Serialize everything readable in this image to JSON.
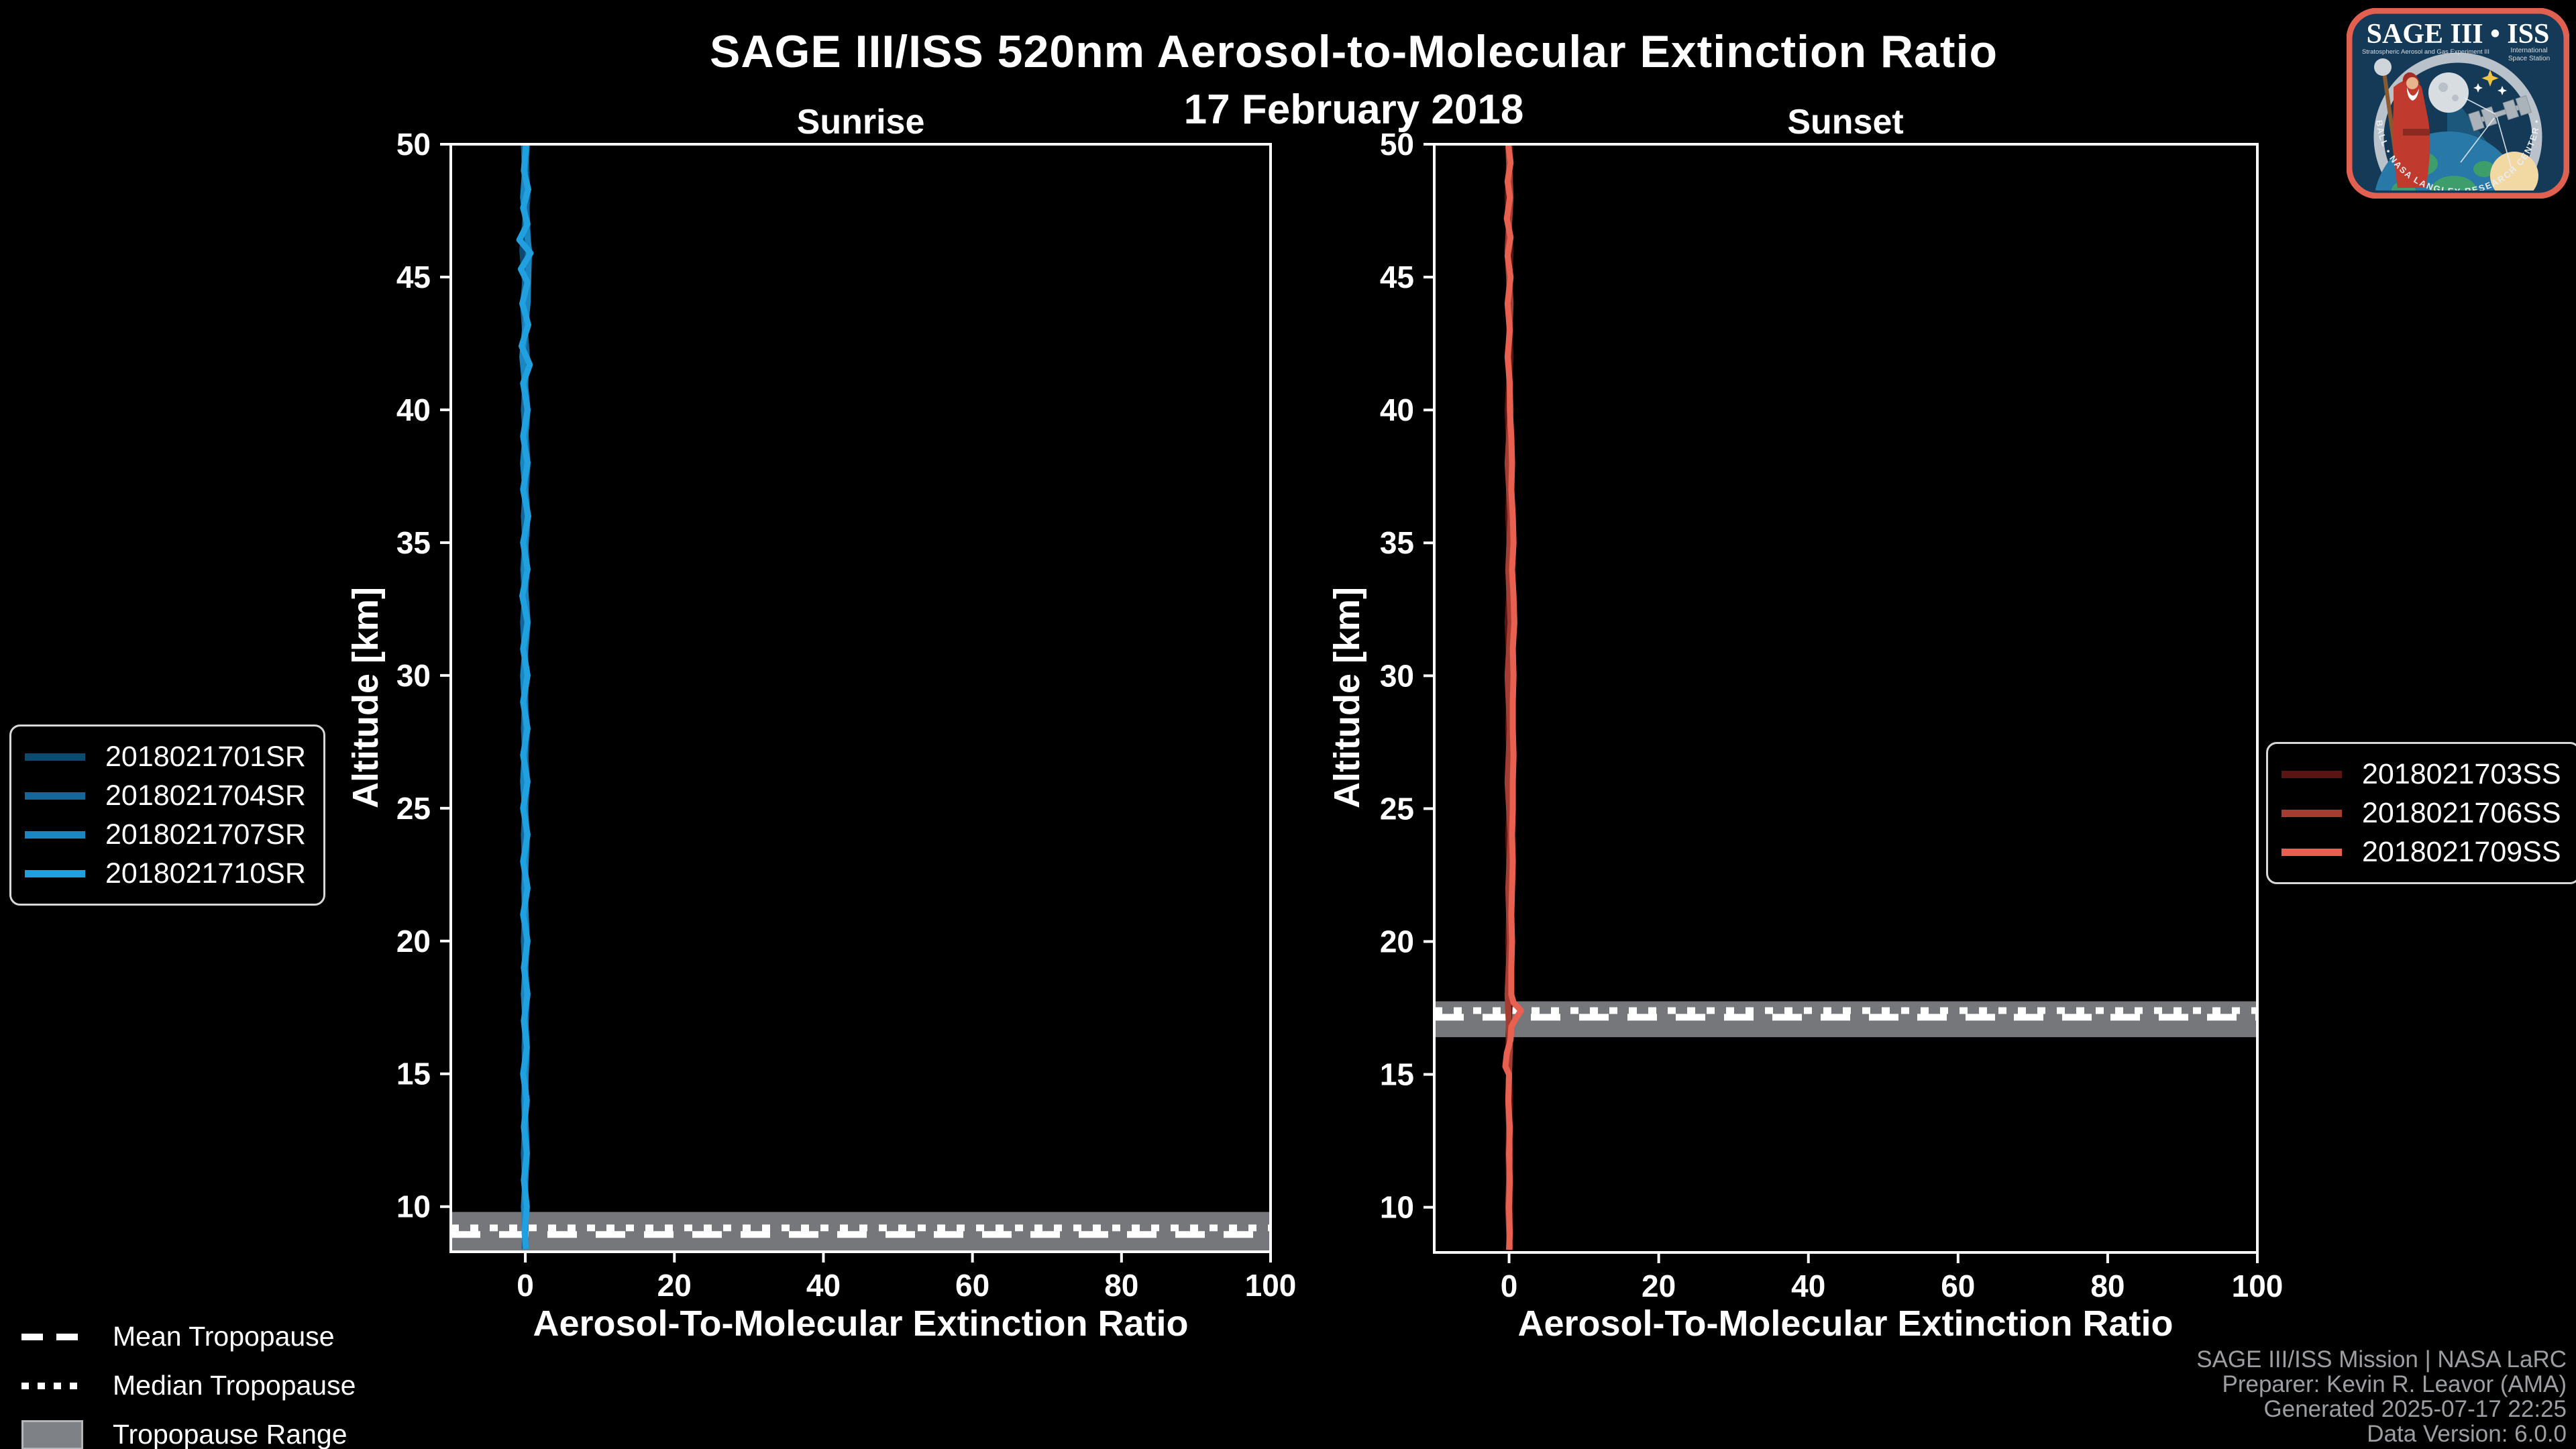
{
  "figure": {
    "title": "SAGE III/ISS 520nm Aerosol-to-Molecular Extinction Ratio",
    "subtitle": "17 February 2018",
    "background": "#000000",
    "text_color": "#ffffff",
    "axis_color": "#ffffff"
  },
  "credits": {
    "color": "#9c9ea1",
    "lines": [
      "SAGE III/ISS Mission | NASA LaRC",
      "Preparer: Kevin R. Leavor (AMA)",
      "Generated 2025-07-17 22:25",
      "Data Version: 6.0.0"
    ]
  },
  "tropopause_legend": {
    "items": [
      {
        "label": "Mean Tropopause",
        "style": "dashed"
      },
      {
        "label": "Median Tropopause",
        "style": "dotted"
      },
      {
        "label": "Tropopause Range",
        "style": "patch"
      }
    ]
  },
  "logo": {
    "title": "SAGE III • ISS",
    "sub_left": "Stratospheric Aerosol and Gas Experiment III",
    "sub_right_1": "International",
    "sub_right_2": "Space Station",
    "ring_text": "BALL • NASA LANGLEY RESEARCH CENTER • SS-I • ESA",
    "border_color": "#e2604f",
    "bg_color": "#143a57"
  },
  "chart_data": [
    {
      "type": "line",
      "title": "Sunrise",
      "xlabel": "Aerosol-To-Molecular Extinction Ratio",
      "ylabel": "Altitude [km]",
      "xlim": [
        -10,
        100
      ],
      "ylim": [
        8.3,
        50
      ],
      "xticks": [
        0,
        20,
        40,
        60,
        80,
        100
      ],
      "yticks": [
        10,
        15,
        20,
        25,
        30,
        35,
        40,
        45,
        50
      ],
      "grid": false,
      "legend_position": "outside-left",
      "tropopause": {
        "range": [
          8.33,
          9.8
        ],
        "mean": 8.95,
        "median": 9.2,
        "band_color": "#75777b",
        "line_color": "#ffffff"
      },
      "series": [
        {
          "name": "2018021701SR",
          "color": "#0d4a70",
          "points_format": "[altitude_km, ratio]",
          "points": [
            [
              50,
              0.0
            ],
            [
              48,
              0.3
            ],
            [
              46,
              -0.4
            ],
            [
              44,
              0.2
            ],
            [
              42,
              -0.3
            ],
            [
              40,
              0.1
            ],
            [
              38,
              -0.2
            ],
            [
              36,
              0.2
            ],
            [
              34,
              -0.3
            ],
            [
              32,
              0.1
            ],
            [
              30,
              -0.2
            ],
            [
              28,
              0.2
            ],
            [
              26,
              -0.1
            ],
            [
              24,
              0.1
            ],
            [
              22,
              -0.2
            ],
            [
              20,
              0.1
            ],
            [
              18,
              -0.1
            ],
            [
              16,
              0.1
            ],
            [
              14,
              -0.2
            ],
            [
              12,
              0.1
            ],
            [
              10,
              -0.1
            ],
            [
              8.4,
              0.0
            ]
          ]
        },
        {
          "name": "2018021704SR",
          "color": "#13679a",
          "points_format": "[altitude_km, ratio]",
          "points": [
            [
              50,
              -0.2
            ],
            [
              48,
              0.1
            ],
            [
              46,
              0.4
            ],
            [
              44,
              -0.3
            ],
            [
              42,
              0.2
            ],
            [
              40,
              -0.2
            ],
            [
              38,
              0.3
            ],
            [
              36,
              -0.2
            ],
            [
              34,
              0.2
            ],
            [
              32,
              -0.3
            ],
            [
              30,
              0.1
            ],
            [
              28,
              -0.2
            ],
            [
              26,
              0.2
            ],
            [
              24,
              -0.2
            ],
            [
              22,
              0.1
            ],
            [
              20,
              -0.2
            ],
            [
              18,
              0.2
            ],
            [
              16,
              -0.1
            ],
            [
              14,
              0.1
            ],
            [
              12,
              -0.2
            ],
            [
              10,
              0.1
            ],
            [
              8.4,
              -0.1
            ]
          ]
        },
        {
          "name": "2018021707SR",
          "color": "#1a87c2",
          "points_format": "[altitude_km, ratio]",
          "points": [
            [
              50,
              0.2
            ],
            [
              48,
              -0.3
            ],
            [
              46,
              0.5
            ],
            [
              44,
              0.3
            ],
            [
              42,
              -0.4
            ],
            [
              40,
              0.3
            ],
            [
              38,
              -0.3
            ],
            [
              36,
              0.3
            ],
            [
              34,
              -0.2
            ],
            [
              32,
              0.3
            ],
            [
              30,
              -0.3
            ],
            [
              28,
              0.1
            ],
            [
              26,
              -0.3
            ],
            [
              24,
              0.2
            ],
            [
              22,
              -0.1
            ],
            [
              20,
              0.2
            ],
            [
              18,
              -0.2
            ],
            [
              16,
              0.2
            ],
            [
              14,
              -0.1
            ],
            [
              12,
              0.2
            ],
            [
              10,
              -0.2
            ],
            [
              8.4,
              0.1
            ]
          ]
        },
        {
          "name": "2018021710SR",
          "color": "#20a0de",
          "points_format": "[altitude_km, ratio]",
          "points": [
            [
              50,
              0.1
            ],
            [
              49,
              -0.2
            ],
            [
              48.3,
              0.4
            ],
            [
              47.6,
              -0.3
            ],
            [
              47,
              0.3
            ],
            [
              46.4,
              -0.8
            ],
            [
              45.9,
              0.7
            ],
            [
              45.3,
              -0.6
            ],
            [
              44.8,
              0.3
            ],
            [
              44,
              -0.4
            ],
            [
              43.2,
              0.4
            ],
            [
              42.4,
              -0.5
            ],
            [
              41.7,
              0.6
            ],
            [
              41,
              -0.3
            ],
            [
              40,
              0.3
            ],
            [
              39,
              -0.3
            ],
            [
              38,
              0.3
            ],
            [
              37,
              -0.3
            ],
            [
              36,
              0.4
            ],
            [
              35,
              -0.3
            ],
            [
              34,
              0.3
            ],
            [
              33,
              -0.4
            ],
            [
              32,
              0.3
            ],
            [
              31,
              -0.3
            ],
            [
              30,
              0.3
            ],
            [
              29,
              -0.3
            ],
            [
              28,
              0.3
            ],
            [
              27,
              -0.3
            ],
            [
              26,
              0.3
            ],
            [
              25,
              -0.3
            ],
            [
              24,
              0.3
            ],
            [
              23,
              -0.3
            ],
            [
              22,
              0.3
            ],
            [
              21,
              -0.3
            ],
            [
              20,
              0.3
            ],
            [
              19,
              -0.2
            ],
            [
              18,
              0.3
            ],
            [
              17,
              -0.2
            ],
            [
              16,
              0.2
            ],
            [
              15,
              -0.3
            ],
            [
              14,
              0.2
            ],
            [
              13,
              -0.2
            ],
            [
              12,
              0.2
            ],
            [
              11,
              -0.2
            ],
            [
              10,
              0.2
            ],
            [
              9,
              -0.1
            ],
            [
              8.4,
              0.1
            ]
          ]
        }
      ]
    },
    {
      "type": "line",
      "title": "Sunset",
      "xlabel": "Aerosol-To-Molecular Extinction Ratio",
      "ylabel": "Altitude [km]",
      "xlim": [
        -10,
        100
      ],
      "ylim": [
        8.3,
        50
      ],
      "xticks": [
        0,
        20,
        40,
        60,
        80,
        100
      ],
      "yticks": [
        10,
        15,
        20,
        25,
        30,
        35,
        40,
        45,
        50
      ],
      "grid": false,
      "legend_position": "outside-right",
      "tropopause": {
        "range": [
          16.4,
          17.75
        ],
        "mean": 17.15,
        "median": 17.4,
        "band_color": "#75777b",
        "line_color": "#ffffff"
      },
      "series": [
        {
          "name": "2018021703SS",
          "color": "#5a1512",
          "points_format": "[altitude_km, ratio]",
          "points": [
            [
              50,
              0.1
            ],
            [
              48,
              -0.2
            ],
            [
              46,
              0.2
            ],
            [
              44,
              -0.1
            ],
            [
              42,
              0.2
            ],
            [
              40,
              -0.2
            ],
            [
              38,
              0.1
            ],
            [
              36,
              -0.1
            ],
            [
              34,
              0.2
            ],
            [
              32,
              -0.2
            ],
            [
              30,
              0.1
            ],
            [
              28,
              -0.1
            ],
            [
              26,
              0.2
            ],
            [
              24,
              -0.1
            ],
            [
              22,
              0.1
            ],
            [
              20,
              -0.1
            ],
            [
              18,
              0.1
            ],
            [
              16,
              -0.1
            ],
            [
              14,
              0.1
            ],
            [
              12,
              -0.1
            ],
            [
              10,
              0.1
            ],
            [
              8.4,
              0.0
            ]
          ]
        },
        {
          "name": "2018021706SS",
          "color": "#a53c31",
          "points_format": "[altitude_km, ratio]",
          "points": [
            [
              50,
              -0.1
            ],
            [
              48,
              0.2
            ],
            [
              46,
              -0.2
            ],
            [
              44,
              0.2
            ],
            [
              42,
              -0.1
            ],
            [
              40,
              0.2
            ],
            [
              38,
              -0.2
            ],
            [
              36,
              0.2
            ],
            [
              34,
              -0.1
            ],
            [
              32,
              0.2
            ],
            [
              30,
              -0.2
            ],
            [
              28,
              0.1
            ],
            [
              26,
              -0.2
            ],
            [
              24,
              0.2
            ],
            [
              22,
              -0.1
            ],
            [
              20,
              0.1
            ],
            [
              18,
              -0.2
            ],
            [
              16,
              0.1
            ],
            [
              14,
              -0.1
            ],
            [
              12,
              0.1
            ],
            [
              10,
              -0.1
            ],
            [
              8.4,
              0.1
            ]
          ]
        },
        {
          "name": "2018021709SS",
          "color": "#e8604f",
          "points_format": "[altitude_km, ratio]",
          "points": [
            [
              50,
              -0.1
            ],
            [
              49.3,
              0.2
            ],
            [
              48.6,
              -0.2
            ],
            [
              48,
              0.1
            ],
            [
              47.2,
              -0.3
            ],
            [
              46.5,
              0.2
            ],
            [
              45.8,
              -0.2
            ],
            [
              45,
              0.2
            ],
            [
              44,
              -0.2
            ],
            [
              43,
              0.1
            ],
            [
              42,
              -0.2
            ],
            [
              41,
              0.1
            ],
            [
              40,
              0.1
            ],
            [
              39,
              0.3
            ],
            [
              38,
              0.4
            ],
            [
              37,
              0.3
            ],
            [
              36,
              0.5
            ],
            [
              35,
              0.6
            ],
            [
              34,
              0.4
            ],
            [
              33,
              0.6
            ],
            [
              32,
              0.7
            ],
            [
              31,
              0.5
            ],
            [
              30,
              0.6
            ],
            [
              29,
              0.5
            ],
            [
              28,
              0.5
            ],
            [
              27,
              0.6
            ],
            [
              26,
              0.5
            ],
            [
              25,
              0.5
            ],
            [
              24,
              0.4
            ],
            [
              23,
              0.5
            ],
            [
              22,
              0.4
            ],
            [
              21,
              0.3
            ],
            [
              20,
              0.4
            ],
            [
              19,
              0.3
            ],
            [
              18,
              0.3
            ],
            [
              17.7,
              0.6
            ],
            [
              17.4,
              1.6
            ],
            [
              17.1,
              0.9
            ],
            [
              16.8,
              0.3
            ],
            [
              16.3,
              0.2
            ],
            [
              15.8,
              -0.3
            ],
            [
              15.3,
              -0.5
            ],
            [
              15,
              0.0
            ],
            [
              14,
              -0.1
            ],
            [
              13,
              0.1
            ],
            [
              12,
              0.0
            ],
            [
              11,
              0.1
            ],
            [
              10,
              0.0
            ],
            [
              9,
              0.1
            ],
            [
              8.4,
              0.0
            ]
          ]
        }
      ]
    }
  ]
}
